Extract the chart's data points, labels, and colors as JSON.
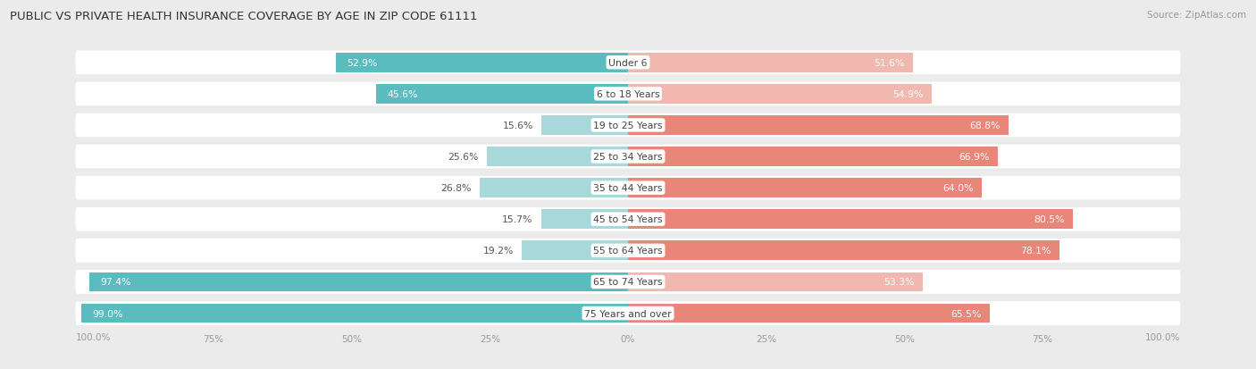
{
  "title": "PUBLIC VS PRIVATE HEALTH INSURANCE COVERAGE BY AGE IN ZIP CODE 61111",
  "source": "Source: ZipAtlas.com",
  "categories": [
    "Under 6",
    "6 to 18 Years",
    "19 to 25 Years",
    "25 to 34 Years",
    "35 to 44 Years",
    "45 to 54 Years",
    "55 to 64 Years",
    "65 to 74 Years",
    "75 Years and over"
  ],
  "public_values": [
    52.9,
    45.6,
    15.6,
    25.6,
    26.8,
    15.7,
    19.2,
    97.4,
    99.0
  ],
  "private_values": [
    51.6,
    54.9,
    68.8,
    66.9,
    64.0,
    80.5,
    78.1,
    53.3,
    65.5
  ],
  "public_color": "#5bbcbf",
  "private_color": "#e8867a",
  "public_color_light": "#a8d8da",
  "private_color_light": "#f0b8ae",
  "bg_color": "#ebebeb",
  "row_bg_color": "#ffffff",
  "text_dark": "#333333",
  "text_gray": "#999999",
  "label_inside_color": "#ffffff",
  "label_outside_color": "#555555",
  "xlim": 100,
  "bar_height": 0.62,
  "inside_label_threshold_public": 30,
  "inside_label_threshold_private": 30
}
